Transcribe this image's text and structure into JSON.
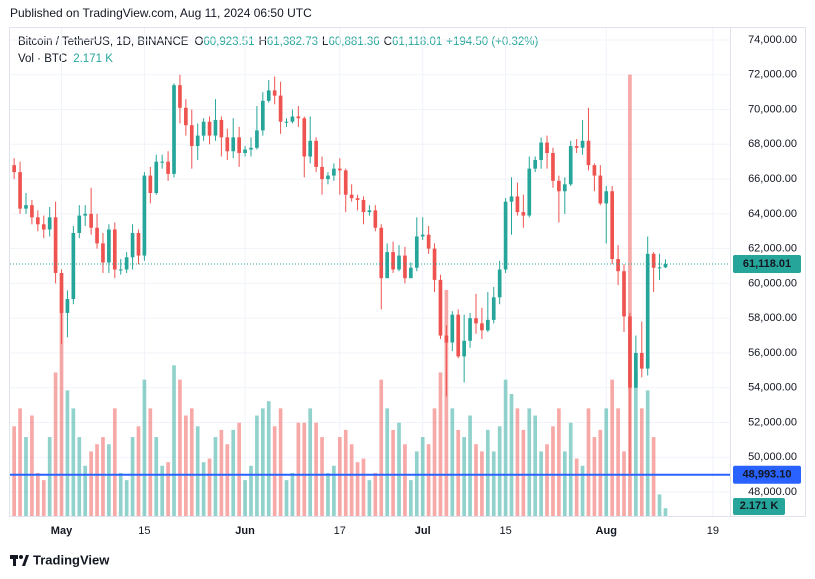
{
  "chart_data": {
    "type": "candlestick",
    "published": "Published on TradingView.com, Aug 11, 2024 06:50 UTC",
    "legend": {
      "symbol": "Bitcoin / TetherUS, 1D, BINANCE",
      "items": [
        {
          "key": "O",
          "value": "60,923.51"
        },
        {
          "key": "H",
          "value": "61,382.73"
        },
        {
          "key": "L",
          "value": "60,881.36"
        },
        {
          "key": "C",
          "value": "61,118.01"
        }
      ],
      "change": "+194.50 (+0.32%)",
      "volume_label": "Vol · BTC",
      "volume_value": "2.171 K"
    },
    "open": [
      66800,
      66400,
      64300,
      64500,
      63800,
      63400,
      63100,
      63800,
      60600,
      58300,
      59100,
      62900,
      63900,
      64000,
      63200,
      62300,
      61200,
      63100,
      60800,
      60800,
      61500,
      62900,
      61600,
      66200,
      65200,
      67000,
      67000,
      66300,
      71400,
      70100,
      69100,
      67900,
      68500,
      69300,
      68500,
      69400,
      68400,
      67600,
      68400,
      67500,
      67700,
      67800,
      68800,
      70500,
      71100,
      70800,
      69300,
      69300,
      69600,
      69500,
      67300,
      68200,
      66700,
      66000,
      66200,
      66600,
      66500,
      65100,
      64900,
      64800,
      64100,
      64200,
      63200,
      60300,
      61800,
      60800,
      61600,
      60300,
      60900,
      62700,
      62800,
      62000,
      60200,
      57000,
      56600,
      58200,
      55800,
      56700,
      58000,
      57700,
      57300,
      57900,
      59200,
      60800,
      64700,
      65000,
      64100,
      63900,
      66600,
      67100,
      68100,
      67500,
      65900,
      65300,
      65700,
      67900,
      67800,
      68200,
      66800,
      66200,
      64600,
      65300,
      61400,
      60700,
      58100,
      54000,
      56000,
      55100,
      61700,
      60900,
      60923.51
    ],
    "high": [
      67200,
      67000,
      65200,
      64800,
      64200,
      63900,
      64400,
      64700,
      60800,
      59600,
      63300,
      64500,
      64500,
      65500,
      64000,
      62900,
      63400,
      63500,
      61400,
      61800,
      63400,
      63100,
      66400,
      66700,
      67400,
      67400,
      67600,
      71500,
      72000,
      70600,
      70000,
      69200,
      69500,
      69600,
      70600,
      69600,
      68900,
      69500,
      69000,
      67900,
      68400,
      70200,
      71000,
      71700,
      71900,
      71600,
      69500,
      70000,
      70200,
      69600,
      69600,
      68400,
      67300,
      66400,
      66900,
      67200,
      66600,
      65700,
      65100,
      65000,
      64500,
      64500,
      63400,
      62300,
      62400,
      62200,
      62100,
      61200,
      63800,
      63800,
      63300,
      62300,
      60500,
      57600,
      58400,
      58500,
      58200,
      58300,
      59400,
      58600,
      59500,
      59800,
      61300,
      64900,
      66100,
      65800,
      65100,
      67300,
      67300,
      68400,
      68500,
      67800,
      66200,
      66100,
      68200,
      68300,
      69400,
      70100,
      66900,
      66800,
      65600,
      65600,
      62200,
      61100,
      58300,
      57000,
      57800,
      62700,
      61800,
      61700,
      61382.73
    ],
    "low": [
      66000,
      64000,
      64000,
      63400,
      63000,
      62600,
      62700,
      60000,
      56500,
      56900,
      58800,
      62600,
      63300,
      62800,
      62000,
      60600,
      60600,
      60300,
      60500,
      60600,
      60800,
      61100,
      61300,
      64600,
      65100,
      66600,
      65900,
      66100,
      69200,
      68500,
      66600,
      67100,
      68200,
      68000,
      68200,
      67300,
      67100,
      67200,
      66700,
      67300,
      67300,
      67700,
      68500,
      70400,
      70300,
      68600,
      69000,
      69200,
      69000,
      66100,
      66900,
      66400,
      65100,
      65700,
      65900,
      65100,
      64100,
      64700,
      64200,
      63400,
      63900,
      63000,
      58500,
      60300,
      60600,
      60700,
      60000,
      60300,
      60700,
      62500,
      61700,
      59500,
      56800,
      53500,
      56100,
      55700,
      54300,
      56300,
      57100,
      56800,
      57200,
      57700,
      58800,
      60600,
      62800,
      63900,
      63200,
      63800,
      66400,
      66600,
      66600,
      65500,
      63500,
      64000,
      65600,
      67500,
      67400,
      66500,
      65300,
      64500,
      62300,
      61100,
      59900,
      57200,
      49000,
      54000,
      54600,
      54700,
      59500,
      60200,
      60881.36
    ],
    "close": [
      66400,
      64300,
      64500,
      63800,
      63400,
      63100,
      63800,
      60600,
      58300,
      59100,
      62900,
      63900,
      64000,
      63200,
      62300,
      61200,
      63100,
      60800,
      60800,
      61500,
      62900,
      61600,
      66200,
      65200,
      67000,
      67000,
      66300,
      71400,
      70100,
      69100,
      67900,
      68500,
      69300,
      68500,
      69400,
      68400,
      67600,
      68400,
      67500,
      67700,
      67800,
      68800,
      70500,
      71100,
      70800,
      69300,
      69300,
      69600,
      69500,
      67300,
      68200,
      66700,
      66000,
      66200,
      66600,
      66500,
      65100,
      64900,
      64800,
      64100,
      64200,
      63200,
      60300,
      61800,
      60800,
      61600,
      60300,
      60900,
      62700,
      62800,
      62000,
      60200,
      57000,
      56600,
      58200,
      55800,
      56700,
      58000,
      57700,
      57300,
      57900,
      59200,
      60800,
      64700,
      65000,
      64100,
      63900,
      66600,
      67100,
      68100,
      67500,
      65900,
      65300,
      65700,
      67900,
      67800,
      68200,
      66800,
      66200,
      64600,
      65300,
      61400,
      60700,
      58100,
      54000,
      56000,
      55100,
      61700,
      60900,
      60923.51,
      61118.01
    ],
    "volume": [
      25,
      30,
      22,
      28,
      12,
      10,
      22,
      40,
      63,
      35,
      30,
      22,
      14,
      18,
      20,
      22,
      20,
      30,
      12,
      10,
      22,
      25,
      38,
      30,
      22,
      14,
      15,
      42,
      38,
      28,
      30,
      25,
      15,
      16,
      22,
      24,
      20,
      24,
      26,
      10,
      14,
      28,
      30,
      32,
      25,
      30,
      10,
      12,
      26,
      26,
      30,
      26,
      22,
      12,
      14,
      22,
      24,
      20,
      15,
      16,
      10,
      12,
      38,
      30,
      24,
      26,
      20,
      10,
      18,
      22,
      20,
      30,
      40,
      63,
      30,
      24,
      22,
      28,
      20,
      18,
      24,
      18,
      25,
      38,
      34,
      30,
      24,
      30,
      28,
      18,
      20,
      25,
      30,
      18,
      26,
      16,
      14,
      30,
      22,
      24,
      30,
      38,
      30,
      18,
      123,
      40,
      30,
      35,
      22,
      6,
      2.171
    ],
    "volume_lim": [
      0,
      136
    ],
    "xlim": [
      -0.7,
      120.9
    ],
    "ylim": [
      46620,
      74690
    ],
    "yticks": [
      {
        "value": 74000,
        "label": "74,000.00"
      },
      {
        "value": 72000,
        "label": "72,000.00"
      },
      {
        "value": 70000,
        "label": "70,000.00"
      },
      {
        "value": 68000,
        "label": "68,000.00"
      },
      {
        "value": 66000,
        "label": "66,000.00"
      },
      {
        "value": 64000,
        "label": "64,000.00"
      },
      {
        "value": 62000,
        "label": "62,000.00"
      },
      {
        "value": 60000,
        "label": "60,000.00"
      },
      {
        "value": 58000,
        "label": "58,000.00"
      },
      {
        "value": 56000,
        "label": "56,000.00"
      },
      {
        "value": 54000,
        "label": "54,000.00"
      },
      {
        "value": 52000,
        "label": "52,000.00"
      },
      {
        "value": 50000,
        "label": "50,000.00"
      },
      {
        "value": 48000,
        "label": "48,000.00"
      }
    ],
    "xticks": [
      {
        "value": 8,
        "label": "May"
      },
      {
        "value": 22,
        "label": "15"
      },
      {
        "value": 39,
        "label": "Jun"
      },
      {
        "value": 55,
        "label": "17"
      },
      {
        "value": 69,
        "label": "Jul"
      },
      {
        "value": 83,
        "label": "15"
      },
      {
        "value": 100,
        "label": "Aug"
      },
      {
        "value": 118,
        "label": "19"
      }
    ],
    "up_color": "#26a69a",
    "down_color": "#ef5350",
    "last_price_label": "61,118.01",
    "hline": {
      "value": 48993.1,
      "label": "48,993.10",
      "color": "#2962ff"
    },
    "grid": true,
    "brand": "TradingView"
  }
}
